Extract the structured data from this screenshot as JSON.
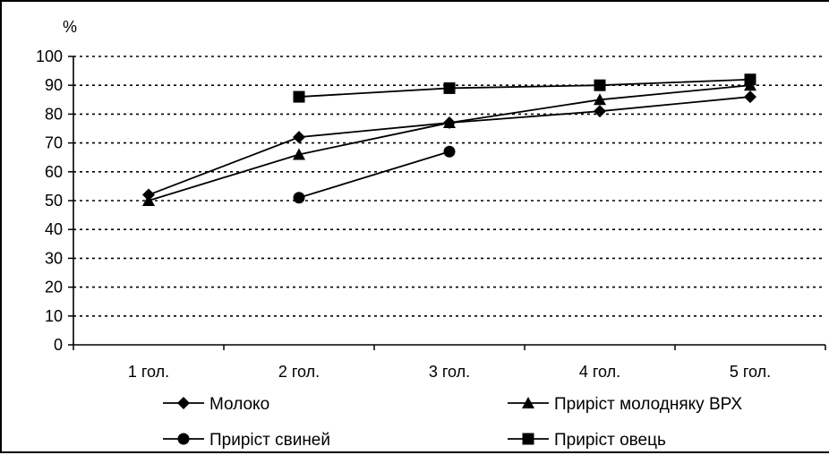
{
  "chart_data": {
    "type": "line",
    "ylabel": "%",
    "ylim": [
      0,
      100
    ],
    "yticks": [
      0,
      10,
      20,
      30,
      40,
      50,
      60,
      70,
      80,
      90,
      100
    ],
    "categories": [
      "1 гол.",
      "2 гол.",
      "3 гол.",
      "4 гол.",
      "5 гол."
    ],
    "grid": "horizontal dotted",
    "legend_position": "bottom",
    "series": [
      {
        "name": "Молоко",
        "marker": "diamond",
        "values": [
          52,
          72,
          77,
          81,
          86
        ]
      },
      {
        "name": "Приріст молодняку ВРХ",
        "marker": "triangle",
        "values": [
          50,
          66,
          77,
          85,
          90
        ]
      },
      {
        "name": "Приріст свиней",
        "marker": "circle",
        "values": [
          null,
          51,
          67,
          null,
          null
        ]
      },
      {
        "name": "Приріст овець",
        "marker": "square",
        "values": [
          null,
          86,
          89,
          90,
          92
        ]
      }
    ],
    "colors": {
      "line": "#000000",
      "grid": "#000000",
      "background": "#ffffff"
    }
  }
}
